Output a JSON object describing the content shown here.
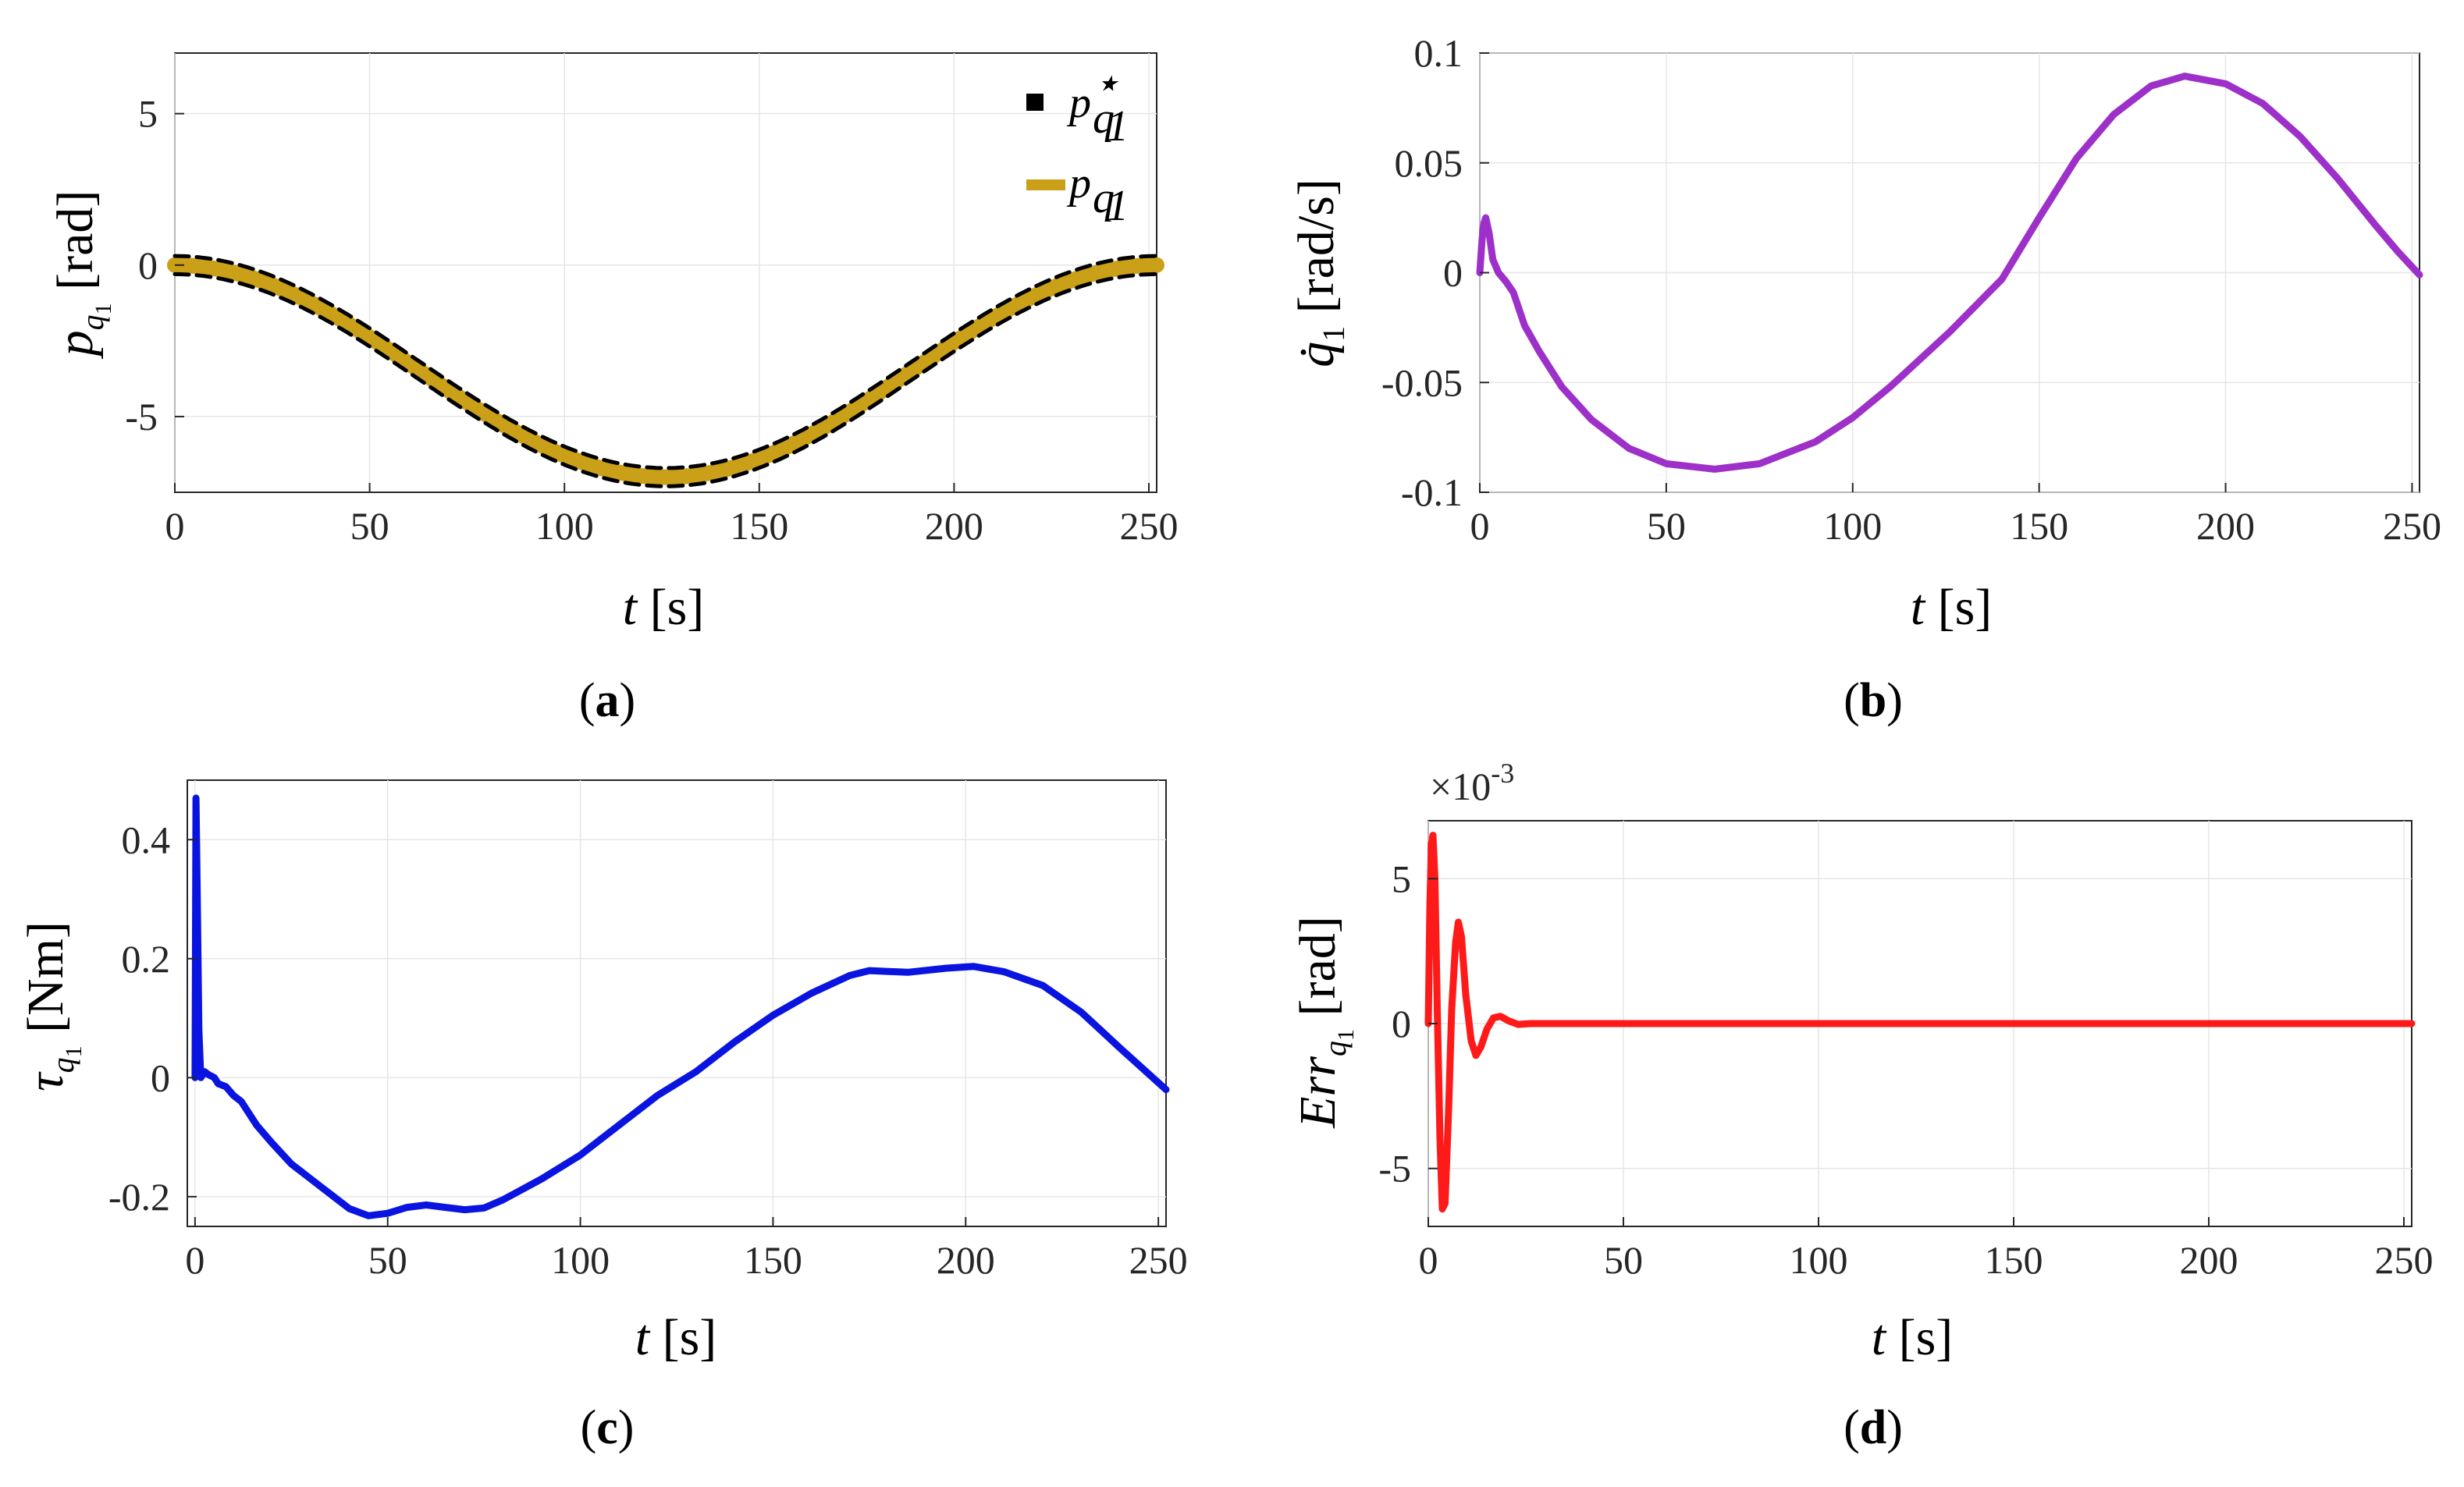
{
  "chart_data": [
    {
      "id": "a",
      "type": "line",
      "caption": "(a)",
      "xlabel": "t [s]",
      "ylabel": "p_q1 [rad]",
      "xlim": [
        0,
        252
      ],
      "ylim": [
        -7.5,
        7
      ],
      "xticks": [
        0,
        50,
        100,
        150,
        200,
        250
      ],
      "yticks": [
        -5,
        0,
        5
      ],
      "ytick_labels": [
        "-5",
        "0",
        "5"
      ],
      "legend": {
        "position": "top-right",
        "entries": [
          "p*_q1",
          "p_q1"
        ]
      },
      "series": [
        {
          "name": "p*_q1 upper bound",
          "style": "dashed",
          "color": "#000000",
          "fn": "cos",
          "amp": 3.5,
          "offset": -3.5,
          "period": 252,
          "shift": 0.3
        },
        {
          "name": "p*_q1 lower bound",
          "style": "dashed",
          "color": "#000000",
          "fn": "cos",
          "amp": 3.5,
          "offset": -3.5,
          "period": 252,
          "shift": -0.3
        },
        {
          "name": "p_q1",
          "style": "solid",
          "color": "#c9a017",
          "fn": "cos",
          "amp": 3.5,
          "offset": -3.5,
          "period": 252,
          "shift": 0
        }
      ]
    },
    {
      "id": "b",
      "type": "line",
      "caption": "(b)",
      "xlabel": "t [s]",
      "ylabel": "q̇1 [rad/s]",
      "xlim": [
        0,
        252
      ],
      "ylim": [
        -0.1,
        0.1
      ],
      "xticks": [
        0,
        50,
        100,
        150,
        200,
        250
      ],
      "yticks": [
        -0.1,
        -0.05,
        0,
        0.05,
        0.1
      ],
      "ytick_labels": [
        "-0.1",
        "-0.05",
        "0",
        "0.05",
        "0.1"
      ],
      "series": [
        {
          "name": "q̇1",
          "color": "#9d30c9",
          "points": [
            [
              0,
              0
            ],
            [
              0.6,
              0.015
            ],
            [
              1,
              0.022
            ],
            [
              1.6,
              0.025
            ],
            [
              2.5,
              0.018
            ],
            [
              3.5,
              0.006
            ],
            [
              5,
              0.0
            ],
            [
              7,
              -0.004
            ],
            [
              9,
              -0.009
            ],
            [
              12,
              -0.024
            ],
            [
              16,
              -0.036
            ],
            [
              22,
              -0.052
            ],
            [
              30,
              -0.067
            ],
            [
              40,
              -0.08
            ],
            [
              50,
              -0.087
            ],
            [
              63,
              -0.0895
            ],
            [
              75,
              -0.087
            ],
            [
              90,
              -0.077
            ],
            [
              100,
              -0.066
            ],
            [
              110,
              -0.052
            ],
            [
              126,
              -0.027
            ],
            [
              140,
              -0.003
            ],
            [
              150,
              0.025
            ],
            [
              160,
              0.052
            ],
            [
              170,
              0.072
            ],
            [
              180,
              0.085
            ],
            [
              189,
              0.0895
            ],
            [
              200,
              0.086
            ],
            [
              210,
              0.077
            ],
            [
              220,
              0.062
            ],
            [
              230,
              0.043
            ],
            [
              240,
              0.022
            ],
            [
              246,
              0.01
            ],
            [
              252,
              -0.001
            ]
          ]
        }
      ]
    },
    {
      "id": "c",
      "type": "line",
      "caption": "(c)",
      "xlabel": "t [s]",
      "ylabel": "τ_q1 [Nm]",
      "xlim": [
        -2,
        252
      ],
      "ylim": [
        -0.25,
        0.5
      ],
      "xticks": [
        0,
        50,
        100,
        150,
        200,
        250
      ],
      "yticks": [
        -0.2,
        0,
        0.2,
        0.4
      ],
      "ytick_labels": [
        "-0.2",
        "0",
        "0.2",
        "0.4"
      ],
      "series": [
        {
          "name": "τ_q1",
          "color": "#0a14e0",
          "points": [
            [
              0,
              0.0
            ],
            [
              0.25,
              0.47
            ],
            [
              0.6,
              0.3
            ],
            [
              1,
              0.08
            ],
            [
              1.5,
              0.0
            ],
            [
              2.5,
              0.01
            ],
            [
              3.5,
              0.005
            ],
            [
              5,
              0.0
            ],
            [
              6,
              -0.01
            ],
            [
              8,
              -0.015
            ],
            [
              10,
              -0.03
            ],
            [
              12,
              -0.04
            ],
            [
              16,
              -0.08
            ],
            [
              20,
              -0.11
            ],
            [
              25,
              -0.145
            ],
            [
              30,
              -0.17
            ],
            [
              35,
              -0.195
            ],
            [
              40,
              -0.22
            ],
            [
              45,
              -0.232
            ],
            [
              50,
              -0.228
            ],
            [
              55,
              -0.218
            ],
            [
              60,
              -0.214
            ],
            [
              65,
              -0.218
            ],
            [
              70,
              -0.222
            ],
            [
              75,
              -0.219
            ],
            [
              80,
              -0.205
            ],
            [
              90,
              -0.17
            ],
            [
              100,
              -0.13
            ],
            [
              110,
              -0.08
            ],
            [
              120,
              -0.03
            ],
            [
              130,
              0.01
            ],
            [
              140,
              0.06
            ],
            [
              150,
              0.105
            ],
            [
              160,
              0.142
            ],
            [
              170,
              0.172
            ],
            [
              175,
              0.18
            ],
            [
              185,
              0.177
            ],
            [
              195,
              0.184
            ],
            [
              202,
              0.187
            ],
            [
              210,
              0.178
            ],
            [
              220,
              0.155
            ],
            [
              230,
              0.11
            ],
            [
              240,
              0.05
            ],
            [
              252,
              -0.02
            ]
          ]
        }
      ]
    },
    {
      "id": "d",
      "type": "line",
      "caption": "(d)",
      "xlabel": "t [s]",
      "ylabel": "Err_q1 [rad]",
      "yscale_label": "×10",
      "yscale_exponent": "-3",
      "xlim": [
        0,
        252
      ],
      "ylim": [
        -7,
        7
      ],
      "xticks": [
        0,
        50,
        100,
        150,
        200,
        250
      ],
      "yticks": [
        -5,
        0,
        5
      ],
      "ytick_labels": [
        "-5",
        "0",
        "5"
      ],
      "series": [
        {
          "name": "Err_q1",
          "color": "#ff1a1a",
          "points": [
            [
              0,
              0
            ],
            [
              0.4,
              4
            ],
            [
              0.8,
              6.2
            ],
            [
              1.2,
              6.5
            ],
            [
              1.7,
              5
            ],
            [
              2.3,
              0.5
            ],
            [
              3,
              -4
            ],
            [
              3.6,
              -6.4
            ],
            [
              4.3,
              -6.2
            ],
            [
              5.2,
              -3
            ],
            [
              6,
              0.5
            ],
            [
              7,
              2.8
            ],
            [
              7.7,
              3.5
            ],
            [
              8.5,
              3
            ],
            [
              9.6,
              1
            ],
            [
              11,
              -0.6
            ],
            [
              12.2,
              -1.1
            ],
            [
              13.5,
              -0.8
            ],
            [
              15,
              -0.2
            ],
            [
              16.7,
              0.2
            ],
            [
              18.5,
              0.25
            ],
            [
              20.5,
              0.1
            ],
            [
              23,
              -0.03
            ],
            [
              26,
              0
            ],
            [
              252,
              0
            ]
          ]
        }
      ]
    }
  ]
}
